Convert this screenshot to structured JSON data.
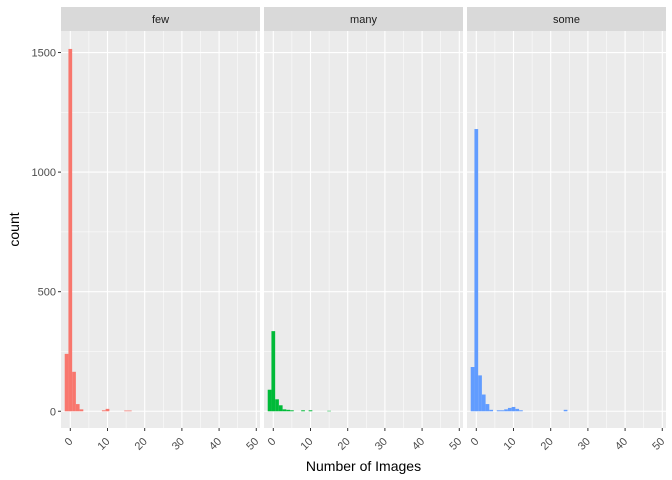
{
  "chart_data": {
    "type": "bar",
    "title": "",
    "xlabel": "Number of Images",
    "ylabel": "count",
    "xlim": [
      -2.5,
      51
    ],
    "ylim": [
      -70,
      1590
    ],
    "x_ticks": [
      0,
      10,
      20,
      30,
      40,
      50
    ],
    "y_ticks": [
      0,
      500,
      1000,
      1500
    ],
    "bin_width": 1,
    "grid": true,
    "legend": "none",
    "panels": [
      {
        "name": "few",
        "color": "#F8766D",
        "bins": [
          {
            "x": -1,
            "count": 240
          },
          {
            "x": 0,
            "count": 1515
          },
          {
            "x": 1,
            "count": 165
          },
          {
            "x": 2,
            "count": 30
          },
          {
            "x": 3,
            "count": 8
          },
          {
            "x": 9,
            "count": 4
          },
          {
            "x": 10,
            "count": 10
          },
          {
            "x": 15,
            "count": 3
          },
          {
            "x": 16,
            "count": 3
          }
        ]
      },
      {
        "name": "many",
        "color": "#00BA38",
        "bins": [
          {
            "x": -1,
            "count": 90
          },
          {
            "x": 0,
            "count": 335
          },
          {
            "x": 1,
            "count": 50
          },
          {
            "x": 2,
            "count": 25
          },
          {
            "x": 3,
            "count": 8
          },
          {
            "x": 4,
            "count": 6
          },
          {
            "x": 5,
            "count": 4
          },
          {
            "x": 8,
            "count": 4
          },
          {
            "x": 10,
            "count": 4
          },
          {
            "x": 15,
            "count": 2
          }
        ]
      },
      {
        "name": "some",
        "color": "#619CFF",
        "bins": [
          {
            "x": -1,
            "count": 185
          },
          {
            "x": 0,
            "count": 1180
          },
          {
            "x": 1,
            "count": 150
          },
          {
            "x": 2,
            "count": 70
          },
          {
            "x": 3,
            "count": 30
          },
          {
            "x": 4,
            "count": 6
          },
          {
            "x": 6,
            "count": 4
          },
          {
            "x": 7,
            "count": 4
          },
          {
            "x": 8,
            "count": 8
          },
          {
            "x": 9,
            "count": 14
          },
          {
            "x": 10,
            "count": 18
          },
          {
            "x": 11,
            "count": 10
          },
          {
            "x": 12,
            "count": 4
          },
          {
            "x": 24,
            "count": 6
          }
        ]
      }
    ]
  }
}
